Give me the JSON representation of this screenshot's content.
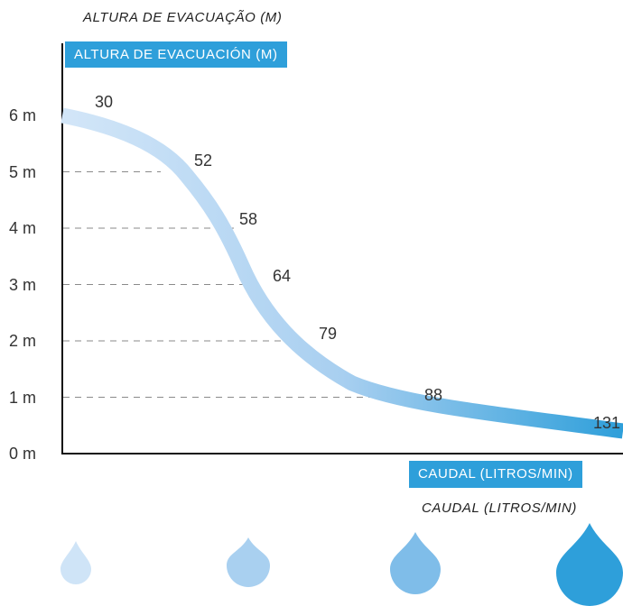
{
  "chart_data": {
    "type": "line",
    "title_pt": "ALTURA DE EVACUAÇÃO (M)",
    "ylabel": "ALTURA DE EVACUACIÓN (M)",
    "xlabel": "CAUDAL (LITROS/MIN)",
    "xlabel_pt": "CAUDAL (LITROS/MIN)",
    "y_ticks": [
      "0 m",
      "1 m",
      "2 m",
      "3 m",
      "4 m",
      "5 m",
      "6 m"
    ],
    "ylim": [
      0,
      6
    ],
    "unit_y": "m",
    "points": [
      {
        "flow": 30,
        "height": 5.75,
        "label": "30"
      },
      {
        "flow": 52,
        "height": 5.0,
        "label": "52"
      },
      {
        "flow": 58,
        "height": 4.0,
        "label": "58"
      },
      {
        "flow": 64,
        "height": 3.0,
        "label": "64"
      },
      {
        "flow": 79,
        "height": 2.0,
        "label": "79"
      },
      {
        "flow": 88,
        "height": 1.0,
        "label": "88"
      },
      {
        "flow": 131,
        "height": 0.0,
        "label": "131"
      }
    ],
    "gridlines": "dashed horizontal, per metre",
    "colors": {
      "line_start": "#cfe4f7",
      "line_end": "#2e9fda",
      "tag": "#2e9fda"
    }
  },
  "decor": {
    "drops": [
      "water-drop-small",
      "water-drop-medium",
      "water-drop-large",
      "water-drop-xlarge"
    ],
    "drop_colors": [
      "#cfe4f7",
      "#a9d0f0",
      "#7fbde9",
      "#2e9fda"
    ]
  }
}
